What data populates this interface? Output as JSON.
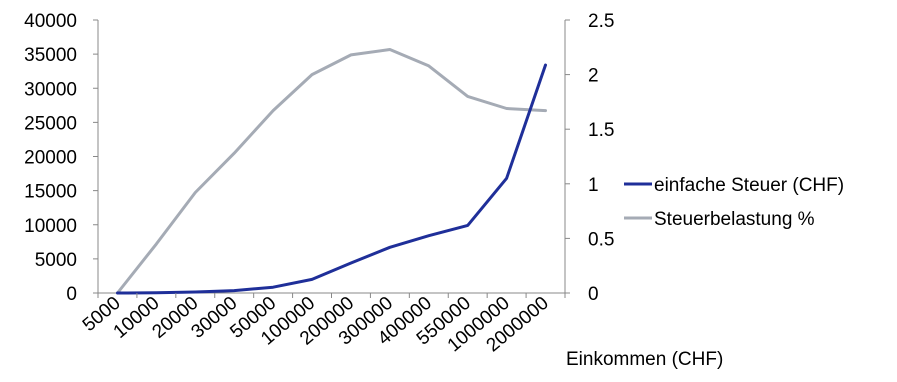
{
  "chart_data": {
    "type": "line",
    "categories": [
      "5000",
      "10000",
      "20000",
      "30000",
      "50000",
      "100000",
      "200000",
      "300000",
      "400000",
      "550000",
      "1000000",
      "2000000"
    ],
    "series": [
      {
        "name": "einfache Steuer (CHF)",
        "axis": "left",
        "color": "#1f2f99",
        "values": [
          0,
          30,
          150,
          350,
          850,
          2000,
          4400,
          6700,
          8400,
          9900,
          16800,
          33400
        ]
      },
      {
        "name": "Steuerbelastung %",
        "axis": "right",
        "color": "#a5abb5",
        "values": [
          0,
          0.45,
          0.92,
          1.28,
          1.67,
          2.0,
          2.18,
          2.23,
          2.08,
          1.8,
          1.69,
          1.67
        ]
      }
    ],
    "y_left": {
      "min": 0,
      "max": 40000,
      "ticks": [
        "0",
        "5000",
        "10000",
        "15000",
        "20000",
        "25000",
        "30000",
        "35000",
        "40000"
      ]
    },
    "y_right": {
      "min": 0,
      "max": 2.5,
      "ticks": [
        "0",
        "0.5",
        "1",
        "1.5",
        "2",
        "2.5"
      ]
    },
    "xlabel": "Einkommen (CHF)",
    "legend_position": "right",
    "grid": false
  }
}
